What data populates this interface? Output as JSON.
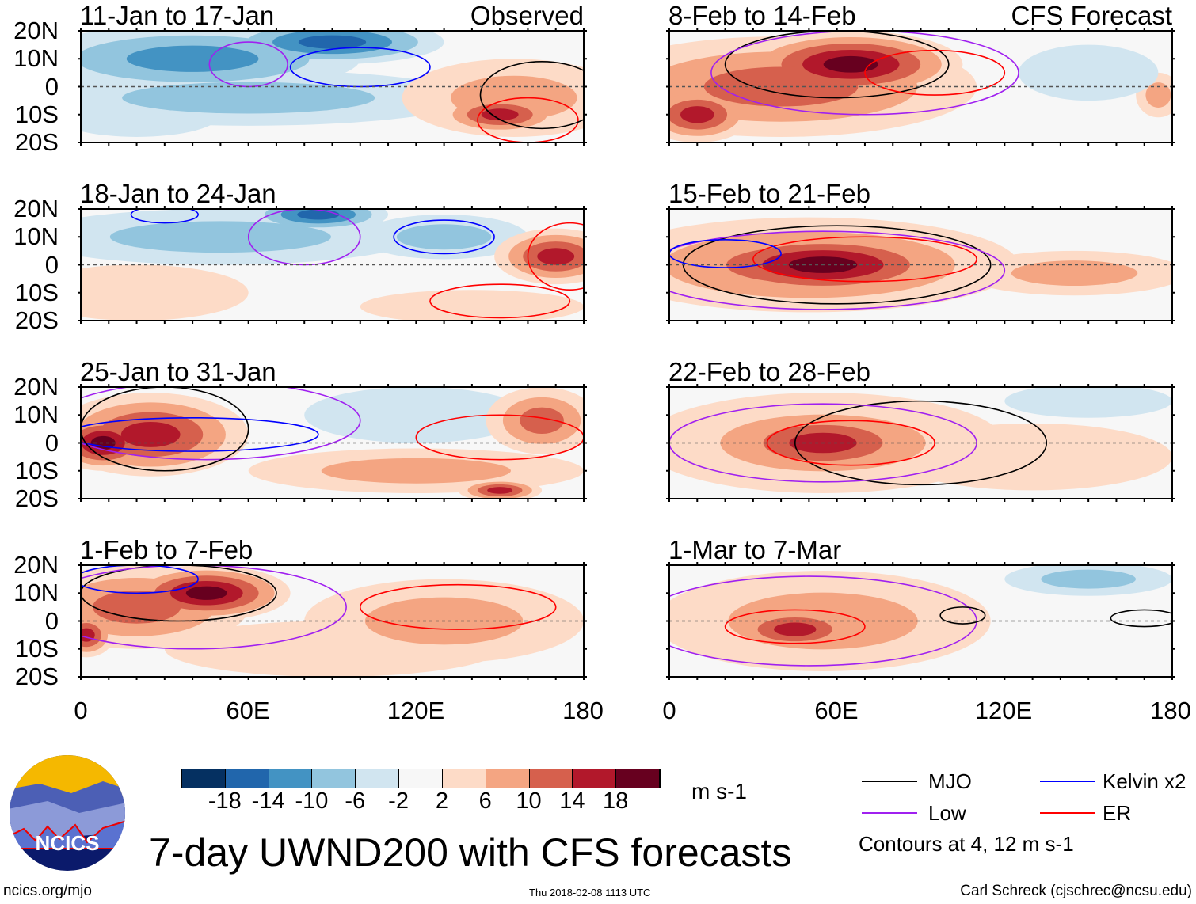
{
  "panels": [
    {
      "title": "11-Jan to 17-Jan",
      "tag": "Observed",
      "blobs": [
        [
          40,
          10,
          60,
          12,
          -12
        ],
        [
          90,
          16,
          40,
          8,
          -16
        ],
        [
          60,
          -4,
          80,
          10,
          -6
        ],
        [
          20,
          -10,
          30,
          8,
          -2
        ],
        [
          155,
          -4,
          40,
          14,
          6
        ],
        [
          150,
          -10,
          22,
          7,
          14
        ]
      ],
      "contours": [
        [
          100,
          7,
          25,
          7,
          "kelvin"
        ],
        [
          60,
          8,
          14,
          8,
          "low"
        ],
        [
          160,
          -12,
          18,
          8,
          "er"
        ],
        [
          165,
          -3,
          22,
          12,
          "mjo"
        ]
      ]
    },
    {
      "title": "18-Jan to 24-Jan",
      "blobs": [
        [
          85,
          18,
          25,
          6,
          -16
        ],
        [
          50,
          10,
          70,
          10,
          -6
        ],
        [
          130,
          10,
          30,
          8,
          -6
        ],
        [
          170,
          3,
          22,
          10,
          14
        ],
        [
          20,
          -10,
          40,
          10,
          4
        ],
        [
          140,
          -15,
          40,
          6,
          4
        ]
      ],
      "contours": [
        [
          130,
          10,
          18,
          6,
          "kelvin"
        ],
        [
          30,
          18,
          12,
          3,
          "kelvin"
        ],
        [
          80,
          10,
          20,
          10,
          "low"
        ],
        [
          150,
          -13,
          25,
          6,
          "er"
        ],
        [
          175,
          3,
          15,
          12,
          "er"
        ]
      ]
    },
    {
      "title": "25-Jan to 31-Jan",
      "blobs": [
        [
          25,
          3,
          35,
          15,
          14
        ],
        [
          8,
          0,
          18,
          10,
          18
        ],
        [
          120,
          10,
          40,
          10,
          -4
        ],
        [
          120,
          -10,
          60,
          8,
          6
        ],
        [
          165,
          8,
          20,
          12,
          12
        ],
        [
          150,
          -17,
          15,
          4,
          14
        ]
      ],
      "contours": [
        [
          40,
          3,
          45,
          6,
          "kelvin"
        ],
        [
          45,
          8,
          55,
          14,
          "low"
        ],
        [
          30,
          5,
          30,
          15,
          "mjo"
        ],
        [
          150,
          2,
          30,
          8,
          "er"
        ]
      ]
    },
    {
      "title": "1-Feb to 7-Feb",
      "blobs": [
        [
          45,
          10,
          30,
          10,
          18
        ],
        [
          20,
          5,
          40,
          15,
          12
        ],
        [
          130,
          0,
          50,
          15,
          6
        ],
        [
          90,
          -10,
          60,
          10,
          4
        ],
        [
          2,
          -5,
          10,
          8,
          14
        ]
      ],
      "contours": [
        [
          35,
          10,
          35,
          10,
          "mjo"
        ],
        [
          40,
          5,
          55,
          15,
          "low"
        ],
        [
          135,
          5,
          35,
          8,
          "er"
        ],
        [
          20,
          15,
          22,
          5,
          "kelvin"
        ]
      ]
    }
  ],
  "panels_right": [
    {
      "title": "8-Feb to 14-Feb",
      "tag": "CFS Forecast",
      "blobs": [
        [
          65,
          8,
          40,
          12,
          18
        ],
        [
          40,
          0,
          70,
          18,
          10
        ],
        [
          10,
          -10,
          20,
          10,
          14
        ],
        [
          175,
          -3,
          8,
          8,
          6
        ],
        [
          150,
          5,
          25,
          10,
          -2
        ]
      ],
      "contours": [
        [
          60,
          8,
          40,
          12,
          "mjo"
        ],
        [
          70,
          5,
          55,
          15,
          "low"
        ],
        [
          95,
          5,
          25,
          8,
          "er"
        ]
      ]
    },
    {
      "title": "15-Feb to 21-Feb",
      "blobs": [
        [
          55,
          0,
          50,
          12,
          18
        ],
        [
          50,
          0,
          75,
          17,
          12
        ],
        [
          145,
          -3,
          40,
          8,
          6
        ]
      ],
      "contours": [
        [
          60,
          0,
          55,
          14,
          "mjo"
        ],
        [
          55,
          -2,
          65,
          14,
          "low"
        ],
        [
          70,
          2,
          40,
          8,
          "er"
        ],
        [
          20,
          4,
          20,
          5,
          "kelvin"
        ]
      ]
    },
    {
      "title": "22-Feb to 28-Feb",
      "blobs": [
        [
          55,
          0,
          40,
          12,
          16
        ],
        [
          55,
          0,
          65,
          18,
          6
        ],
        [
          130,
          -5,
          50,
          12,
          2
        ],
        [
          150,
          15,
          30,
          6,
          -2
        ]
      ],
      "contours": [
        [
          90,
          0,
          45,
          15,
          "mjo"
        ],
        [
          55,
          0,
          55,
          14,
          "low"
        ],
        [
          65,
          0,
          30,
          8,
          "er"
        ]
      ]
    },
    {
      "title": "1-Mar to 7-Mar",
      "blobs": [
        [
          45,
          -3,
          25,
          8,
          14
        ],
        [
          55,
          0,
          60,
          18,
          6
        ],
        [
          150,
          15,
          30,
          6,
          -6
        ]
      ],
      "contours": [
        [
          50,
          0,
          60,
          16,
          "low"
        ],
        [
          45,
          -2,
          25,
          6,
          "er"
        ],
        [
          105,
          2,
          8,
          3,
          "mjo"
        ],
        [
          170,
          1,
          12,
          3,
          "mjo"
        ]
      ]
    }
  ],
  "lat_labels": [
    "20N",
    "10N",
    "0",
    "10S",
    "20S"
  ],
  "lon_labels": [
    "0",
    "60E",
    "120E",
    "180"
  ],
  "colorbar": {
    "colors": [
      "#053061",
      "#2166ac",
      "#4393c3",
      "#92c5de",
      "#d1e5f0",
      "#f7f7f7",
      "#fddbc7",
      "#f4a582",
      "#d6604d",
      "#b2182b",
      "#67001f"
    ],
    "labels": [
      "-18",
      "-14",
      "-10",
      "-6",
      "-2",
      "2",
      "6",
      "10",
      "14",
      "18"
    ],
    "units": "m s-1"
  },
  "legend": {
    "items": [
      {
        "label": "MJO",
        "color": "#000000"
      },
      {
        "label": "Kelvin x2",
        "color": "#0000ff"
      },
      {
        "label": "Low",
        "color": "#a020f0"
      },
      {
        "label": "ER",
        "color": "#ff0000"
      }
    ],
    "note": "Contours at 4, 12 m s-1"
  },
  "title": "7-day UWND200 with CFS forecasts",
  "logo_text": "NCICS",
  "footer": {
    "left": "ncics.org/mjo",
    "center": "Thu 2018-02-08 1113 UTC",
    "right": "Carl Schreck (cjschrec@ncsu.edu)"
  }
}
